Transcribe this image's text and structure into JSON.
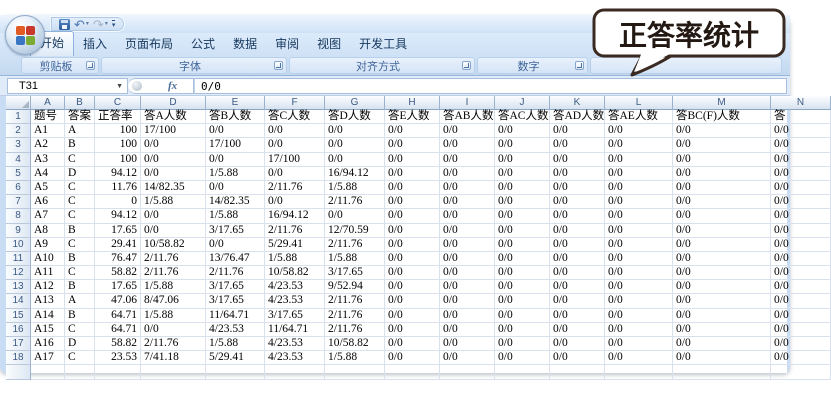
{
  "colors": {
    "title_gradient_top": "#eef5fd",
    "title_gradient_bottom": "#cfe2f5",
    "ribbon_strip": "#c3d8ef",
    "grid_line": "#d9e1ee",
    "header_text": "#3d5a84",
    "callout_border": "#3a2a21",
    "callout_text": "#241812"
  },
  "qat": {
    "icons": [
      {
        "name": "save-icon",
        "glyph": ""
      },
      {
        "name": "undo-icon",
        "glyph": "↶"
      },
      {
        "name": "redo-icon",
        "glyph": "↷"
      },
      {
        "name": "qat-customize-icon",
        "glyph": "▾"
      }
    ]
  },
  "ribbon": {
    "tabs": [
      {
        "label": "开始",
        "active": true
      },
      {
        "label": "插入",
        "active": false
      },
      {
        "label": "页面布局",
        "active": false
      },
      {
        "label": "公式",
        "active": false
      },
      {
        "label": "数据",
        "active": false
      },
      {
        "label": "审阅",
        "active": false
      },
      {
        "label": "视图",
        "active": false
      },
      {
        "label": "开发工具",
        "active": false
      }
    ],
    "groups": [
      {
        "label": "剪贴板",
        "width": 78,
        "launcher": true
      },
      {
        "label": "字体",
        "width": 186,
        "launcher": true
      },
      {
        "label": "对齐方式",
        "width": 186,
        "launcher": true
      },
      {
        "label": "数字",
        "width": 111,
        "launcher": true
      },
      {
        "label": "",
        "width": 192,
        "launcher": false
      }
    ]
  },
  "formula_bar": {
    "name_box": "T31",
    "fx_label": "fx",
    "formula": "0/0"
  },
  "callout": {
    "text": "正答率统计"
  },
  "sheet": {
    "columns": [
      {
        "letter": "A",
        "label": "题号",
        "width": 34,
        "align": "left"
      },
      {
        "letter": "B",
        "label": "答案",
        "width": 30,
        "align": "left"
      },
      {
        "letter": "C",
        "label": "正答率",
        "width": 46,
        "align": "right"
      },
      {
        "letter": "D",
        "label": "答A人数",
        "width": 65,
        "align": "left"
      },
      {
        "letter": "E",
        "label": "答B人数",
        "width": 59,
        "align": "left"
      },
      {
        "letter": "F",
        "label": "答C人数",
        "width": 60,
        "align": "left"
      },
      {
        "letter": "G",
        "label": "答D人数",
        "width": 60,
        "align": "left"
      },
      {
        "letter": "H",
        "label": "答E人数",
        "width": 55,
        "align": "left"
      },
      {
        "letter": "I",
        "label": "答AB人数",
        "width": 55,
        "align": "left"
      },
      {
        "letter": "J",
        "label": "答AC人数",
        "width": 55,
        "align": "left"
      },
      {
        "letter": "K",
        "label": "答AD人数",
        "width": 55,
        "align": "left"
      },
      {
        "letter": "L",
        "label": "答AE人数",
        "width": 68,
        "align": "left"
      },
      {
        "letter": "M",
        "label": "答BC(F)人数",
        "width": 98,
        "align": "left"
      },
      {
        "letter": "N",
        "label": "答",
        "width": 60,
        "align": "left"
      }
    ],
    "rows": [
      [
        "A1",
        "A",
        "100",
        "17/100",
        "0/0",
        "0/0",
        "0/0",
        "0/0",
        "0/0",
        "0/0",
        "0/0",
        "0/0",
        "0/0",
        "0/0"
      ],
      [
        "A2",
        "B",
        "100",
        "0/0",
        "17/100",
        "0/0",
        "0/0",
        "0/0",
        "0/0",
        "0/0",
        "0/0",
        "0/0",
        "0/0",
        "0/0"
      ],
      [
        "A3",
        "C",
        "100",
        "0/0",
        "0/0",
        "17/100",
        "0/0",
        "0/0",
        "0/0",
        "0/0",
        "0/0",
        "0/0",
        "0/0",
        "0/0"
      ],
      [
        "A4",
        "D",
        "94.12",
        "0/0",
        "1/5.88",
        "0/0",
        "16/94.12",
        "0/0",
        "0/0",
        "0/0",
        "0/0",
        "0/0",
        "0/0",
        "0/0"
      ],
      [
        "A5",
        "C",
        "11.76",
        "14/82.35",
        "0/0",
        "2/11.76",
        "1/5.88",
        "0/0",
        "0/0",
        "0/0",
        "0/0",
        "0/0",
        "0/0",
        "0/0"
      ],
      [
        "A6",
        "C",
        "0",
        "1/5.88",
        "14/82.35",
        "0/0",
        "2/11.76",
        "0/0",
        "0/0",
        "0/0",
        "0/0",
        "0/0",
        "0/0",
        "0/0"
      ],
      [
        "A7",
        "C",
        "94.12",
        "0/0",
        "1/5.88",
        "16/94.12",
        "0/0",
        "0/0",
        "0/0",
        "0/0",
        "0/0",
        "0/0",
        "0/0",
        "0/0"
      ],
      [
        "A8",
        "B",
        "17.65",
        "0/0",
        "3/17.65",
        "2/11.76",
        "12/70.59",
        "0/0",
        "0/0",
        "0/0",
        "0/0",
        "0/0",
        "0/0",
        "0/0"
      ],
      [
        "A9",
        "C",
        "29.41",
        "10/58.82",
        "0/0",
        "5/29.41",
        "2/11.76",
        "0/0",
        "0/0",
        "0/0",
        "0/0",
        "0/0",
        "0/0",
        "0/0"
      ],
      [
        "A10",
        "B",
        "76.47",
        "2/11.76",
        "13/76.47",
        "1/5.88",
        "1/5.88",
        "0/0",
        "0/0",
        "0/0",
        "0/0",
        "0/0",
        "0/0",
        "0/0"
      ],
      [
        "A11",
        "C",
        "58.82",
        "2/11.76",
        "2/11.76",
        "10/58.82",
        "3/17.65",
        "0/0",
        "0/0",
        "0/0",
        "0/0",
        "0/0",
        "0/0",
        "0/0"
      ],
      [
        "A12",
        "B",
        "17.65",
        "1/5.88",
        "3/17.65",
        "4/23.53",
        "9/52.94",
        "0/0",
        "0/0",
        "0/0",
        "0/0",
        "0/0",
        "0/0",
        "0/0"
      ],
      [
        "A13",
        "A",
        "47.06",
        "8/47.06",
        "3/17.65",
        "4/23.53",
        "2/11.76",
        "0/0",
        "0/0",
        "0/0",
        "0/0",
        "0/0",
        "0/0",
        "0/0"
      ],
      [
        "A14",
        "B",
        "64.71",
        "1/5.88",
        "11/64.71",
        "3/17.65",
        "2/11.76",
        "0/0",
        "0/0",
        "0/0",
        "0/0",
        "0/0",
        "0/0",
        "0/0"
      ],
      [
        "A15",
        "C",
        "64.71",
        "0/0",
        "4/23.53",
        "11/64.71",
        "2/11.76",
        "0/0",
        "0/0",
        "0/0",
        "0/0",
        "0/0",
        "0/0",
        "0/0"
      ],
      [
        "A16",
        "D",
        "58.82",
        "2/11.76",
        "1/5.88",
        "4/23.53",
        "10/58.82",
        "0/0",
        "0/0",
        "0/0",
        "0/0",
        "0/0",
        "0/0",
        "0/0"
      ],
      [
        "A17",
        "C",
        "23.53",
        "7/41.18",
        "5/29.41",
        "4/23.53",
        "1/5.88",
        "0/0",
        "0/0",
        "0/0",
        "0/0",
        "0/0",
        "0/0",
        "0/0"
      ]
    ]
  }
}
